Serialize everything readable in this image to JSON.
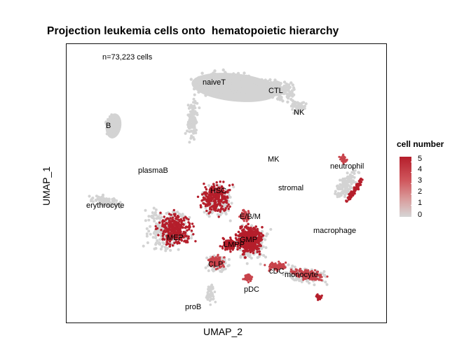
{
  "chart_data": {
    "type": "scatter",
    "title": "Projection leukemia cells onto  hematopoietic hierarchy",
    "xlabel": "UMAP_2",
    "ylabel": "UMAP_1",
    "annotation": "n=73,223 cells",
    "grid": false,
    "axis_ticks": false,
    "legend": {
      "title": "cell number",
      "placement": "right",
      "ticks": [
        "5",
        "4",
        "3",
        "2",
        "1",
        "0"
      ],
      "scale": [
        0,
        5
      ],
      "low_color": "#d3d3d3",
      "high_color": "#b51e2b"
    },
    "clusters": [
      {
        "name": "naiveT",
        "color_level": "low"
      },
      {
        "name": "CTL",
        "color_level": "low"
      },
      {
        "name": "NK",
        "color_level": "low"
      },
      {
        "name": "B",
        "color_level": "low"
      },
      {
        "name": "MK",
        "color_level": "low"
      },
      {
        "name": "neutrophil",
        "color_level": "high"
      },
      {
        "name": "plasmaB",
        "color_level": "low"
      },
      {
        "name": "stromal",
        "color_level": "low"
      },
      {
        "name": "HSC",
        "color_level": "high"
      },
      {
        "name": "erythrocyte",
        "color_level": "low"
      },
      {
        "name": "E/B/M",
        "color_level": "high"
      },
      {
        "name": "macrophage",
        "color_level": "low"
      },
      {
        "name": "MEP",
        "color_level": "high"
      },
      {
        "name": "LMPP",
        "color_level": "high"
      },
      {
        "name": "GMP",
        "color_level": "high"
      },
      {
        "name": "CLP",
        "color_level": "medium"
      },
      {
        "name": "cDC",
        "color_level": "medium"
      },
      {
        "name": "monocyte",
        "color_level": "medium"
      },
      {
        "name": "pDC",
        "color_level": "medium"
      },
      {
        "name": "proB",
        "color_level": "low"
      }
    ]
  },
  "colors": {
    "background_cells": "#d3d3d3",
    "high": "#b51e2b",
    "medium": "#c8434b",
    "low": "#dca4a4"
  }
}
